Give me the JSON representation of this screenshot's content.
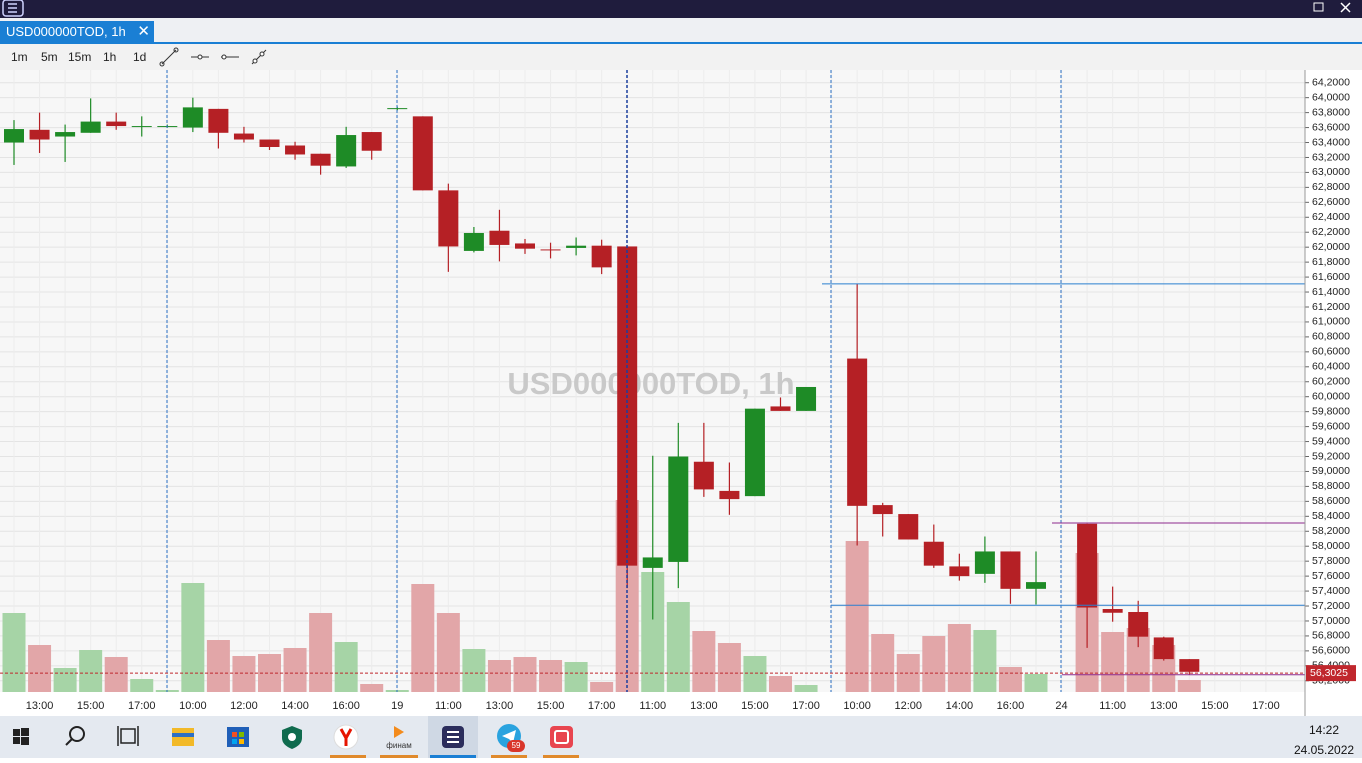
{
  "tab": {
    "title": "USD000000TOD, 1h"
  },
  "toolbar": {
    "intervals": [
      "1m",
      "5m",
      "15m",
      "1h",
      "1d"
    ]
  },
  "chart_data": {
    "type": "candlestick",
    "watermark": "USD000000TOD, 1h",
    "up_color": "#1e8b26",
    "down_color": "#b52025",
    "up_volume_color": "#a6d4a6",
    "down_volume_color": "#e2a6a8",
    "grid": true,
    "categories": [
      null,
      "13:00",
      null,
      "15:00",
      null,
      "17:00",
      null,
      "10:00",
      null,
      "12:00",
      null,
      "14:00",
      null,
      "16:00",
      null,
      "19",
      null,
      "11:00",
      null,
      "13:00",
      null,
      "15:00",
      null,
      "17:00",
      null,
      "11:00",
      null,
      "13:00",
      null,
      "15:00",
      null,
      "17:00",
      null,
      "10:00",
      null,
      "12:00",
      null,
      "14:00",
      null,
      "16:00",
      null,
      "24",
      null,
      "11:00",
      null,
      "13:00",
      null,
      "15:00",
      null,
      "17:00"
    ],
    "open": [
      63.4,
      63.57,
      63.48,
      63.53,
      63.68,
      63.61,
      63.61,
      63.6,
      63.85,
      63.52,
      63.44,
      63.36,
      63.25,
      63.08,
      63.54,
      63.85,
      63.75,
      62.76,
      61.95,
      62.22,
      62.05,
      61.97,
      61.99,
      62.02,
      62.01,
      57.71,
      57.79,
      59.13,
      58.74,
      58.67,
      59.87,
      59.81,
      null,
      60.51,
      58.55,
      58.43,
      58.06,
      57.73,
      57.63,
      57.93,
      57.43,
      null,
      58.3,
      57.16,
      57.12,
      56.78,
      56.49,
      null,
      null,
      null
    ],
    "high": [
      63.7,
      63.8,
      63.64,
      63.99,
      63.8,
      63.75,
      63.64,
      64.0,
      63.85,
      63.61,
      63.44,
      63.41,
      63.25,
      63.61,
      63.54,
      63.88,
      63.75,
      62.85,
      62.27,
      62.5,
      62.11,
      62.06,
      62.13,
      62.1,
      62.01,
      59.21,
      59.65,
      59.65,
      59.12,
      59.84,
      59.99,
      60.13,
      null,
      61.51,
      58.58,
      58.43,
      58.29,
      57.9,
      58.13,
      57.93,
      57.93,
      null,
      58.3,
      57.46,
      57.27,
      56.79,
      56.49,
      null,
      null,
      null
    ],
    "low": [
      63.1,
      63.26,
      63.14,
      63.53,
      63.57,
      63.48,
      63.6,
      63.54,
      63.32,
      63.4,
      63.3,
      63.17,
      62.97,
      63.06,
      63.17,
      63.83,
      62.76,
      61.67,
      61.93,
      61.81,
      61.91,
      61.85,
      61.89,
      61.64,
      57.44,
      57.02,
      57.44,
      58.66,
      58.42,
      58.67,
      59.81,
      59.81,
      null,
      58.01,
      58.13,
      58.09,
      57.71,
      57.54,
      57.51,
      57.23,
      57.22,
      null,
      56.64,
      56.99,
      56.65,
      56.47,
      56.28,
      null,
      null,
      null
    ],
    "close": [
      63.58,
      63.44,
      63.54,
      63.68,
      63.62,
      63.62,
      63.62,
      63.87,
      63.53,
      63.44,
      63.34,
      63.24,
      63.09,
      63.5,
      63.29,
      63.86,
      62.76,
      62.01,
      62.19,
      62.03,
      61.98,
      61.96,
      62.02,
      61.73,
      57.74,
      57.85,
      59.2,
      58.76,
      58.63,
      59.84,
      59.81,
      60.13,
      null,
      58.54,
      58.43,
      58.09,
      57.74,
      57.6,
      57.93,
      57.43,
      57.52,
      null,
      57.18,
      57.11,
      56.79,
      56.49,
      56.32,
      null,
      null,
      null
    ],
    "volume": [
      79,
      47,
      24,
      42,
      35,
      13,
      2,
      109,
      52,
      36,
      38,
      44,
      79,
      50,
      8,
      2,
      108,
      79,
      43,
      32,
      35,
      32,
      30,
      10,
      192,
      120,
      90,
      61,
      49,
      36,
      16,
      7,
      null,
      151,
      58,
      38,
      56,
      68,
      62,
      25,
      18,
      null,
      139,
      60,
      64,
      47,
      12,
      null,
      null,
      null
    ],
    "ylim": [
      56.05,
      64.37
    ],
    "yticks": [
      {
        "value": 64.2,
        "label": "64,2000"
      },
      {
        "value": 64.0,
        "label": "64,0000"
      },
      {
        "value": 63.8,
        "label": "63,8000"
      },
      {
        "value": 63.6,
        "label": "63,6000"
      },
      {
        "value": 63.4,
        "label": "63,4000"
      },
      {
        "value": 63.2,
        "label": "63,2000"
      },
      {
        "value": 63.0,
        "label": "63,0000"
      },
      {
        "value": 62.8,
        "label": "62,8000"
      },
      {
        "value": 62.6,
        "label": "62,6000"
      },
      {
        "value": 62.4,
        "label": "62,4000"
      },
      {
        "value": 62.2,
        "label": "62,2000"
      },
      {
        "value": 62.0,
        "label": "62,0000"
      },
      {
        "value": 61.8,
        "label": "61,8000"
      },
      {
        "value": 61.6,
        "label": "61,6000"
      },
      {
        "value": 61.4,
        "label": "61,4000"
      },
      {
        "value": 61.2,
        "label": "61,2000"
      },
      {
        "value": 61.0,
        "label": "61,0000"
      },
      {
        "value": 60.8,
        "label": "60,8000"
      },
      {
        "value": 60.6,
        "label": "60,6000"
      },
      {
        "value": 60.4,
        "label": "60,4000"
      },
      {
        "value": 60.2,
        "label": "60,2000"
      },
      {
        "value": 60.0,
        "label": "60,0000"
      },
      {
        "value": 59.8,
        "label": "59,8000"
      },
      {
        "value": 59.6,
        "label": "59,6000"
      },
      {
        "value": 59.4,
        "label": "59,4000"
      },
      {
        "value": 59.2,
        "label": "59,2000"
      },
      {
        "value": 59.0,
        "label": "59,0000"
      },
      {
        "value": 58.8,
        "label": "58,8000"
      },
      {
        "value": 58.6,
        "label": "58,6000"
      },
      {
        "value": 58.4,
        "label": "58,4000"
      },
      {
        "value": 58.2,
        "label": "58,2000"
      },
      {
        "value": 58.0,
        "label": "58,0000"
      },
      {
        "value": 57.8,
        "label": "57,8000"
      },
      {
        "value": 57.6,
        "label": "57,6000"
      },
      {
        "value": 57.4,
        "label": "57,4000"
      },
      {
        "value": 57.2,
        "label": "57,2000"
      },
      {
        "value": 57.0,
        "label": "57,0000"
      },
      {
        "value": 56.8,
        "label": "56,8000"
      },
      {
        "value": 56.6,
        "label": "56,6000"
      },
      {
        "value": 56.4,
        "label": "56,4000"
      },
      {
        "value": 56.2,
        "label": "56,2000"
      }
    ],
    "levels": [
      {
        "value": 61.51,
        "color": "#2a7fd0"
      },
      {
        "value": 57.21,
        "color": "#2a7fd0"
      },
      {
        "value": 58.31,
        "color": "#8e2a8e"
      },
      {
        "value": 56.28,
        "color": "#8e2a8e"
      }
    ],
    "last_price": {
      "value": 56.3025,
      "label": "56,3025",
      "color": "#c0272d"
    }
  },
  "taskbar": {
    "finam_label": "финам",
    "telegram_badge": 59,
    "time": "14:22",
    "date": "24.05.2022"
  }
}
